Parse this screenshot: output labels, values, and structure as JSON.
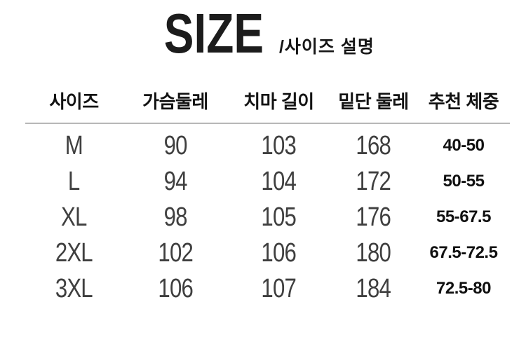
{
  "title": {
    "main": "SIZE",
    "subtitle": "/사이즈 설명"
  },
  "table": {
    "columns": [
      "사이즈",
      "가슴둘레",
      "치마 길이",
      "밑단 둘레",
      "추천 체중"
    ],
    "rows": [
      {
        "cells": [
          "M",
          "90",
          "103",
          "168",
          "40-50"
        ]
      },
      {
        "cells": [
          "L",
          "94",
          "104",
          "172",
          "50-55"
        ]
      },
      {
        "cells": [
          "XL",
          "98",
          "105",
          "176",
          "55-67.5"
        ]
      },
      {
        "cells": [
          "2XL",
          "102",
          "106",
          "180",
          "67.5-72.5"
        ]
      },
      {
        "cells": [
          "3XL",
          "106",
          "107",
          "184",
          "72.5-80"
        ]
      }
    ]
  },
  "colors": {
    "background": "#ffffff",
    "header_text": "#131313",
    "data_text": "#3f3f3f",
    "weight_text": "#101010",
    "divider": "#b7b7b7"
  },
  "chart_data": {
    "type": "table",
    "title": "SIZE /사이즈 설명",
    "columns": [
      "사이즈",
      "가슴둘레",
      "치마 길이",
      "밑단 둘레",
      "추천 체중"
    ],
    "rows": [
      [
        "M",
        90,
        103,
        168,
        "40-50"
      ],
      [
        "L",
        94,
        104,
        172,
        "50-55"
      ],
      [
        "XL",
        98,
        105,
        176,
        "55-67.5"
      ],
      [
        "2XL",
        102,
        106,
        180,
        "67.5-72.5"
      ],
      [
        "3XL",
        106,
        107,
        184,
        "72.5-80"
      ]
    ]
  }
}
